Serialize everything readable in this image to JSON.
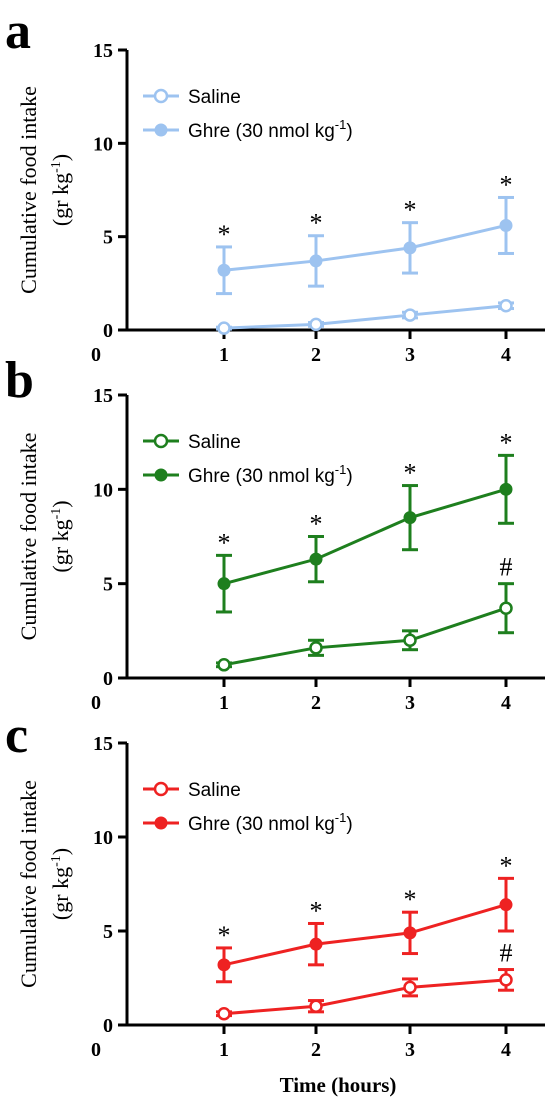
{
  "chart_data": [
    {
      "panel": "a",
      "type": "line",
      "color": "#9dc3f0",
      "x": [
        1,
        2,
        3,
        4
      ],
      "xlim": [
        0,
        4.4
      ],
      "ylim": [
        0,
        15
      ],
      "yticks": [
        0,
        5,
        10,
        15
      ],
      "xticks": [
        0,
        1,
        2,
        3,
        4
      ],
      "ylabel_line1": "Cumulative food intake",
      "ylabel_line2": "(gr kg",
      "ylabel_sup": "-1",
      "ylabel_close": ")",
      "xlabel": "",
      "legend": [
        {
          "name": "Saline",
          "marker": "open"
        },
        {
          "name": "Ghre (30 nmol kg",
          "sup": "-1",
          "close": ")",
          "marker": "filled"
        }
      ],
      "series": [
        {
          "name": "Saline",
          "marker": "open",
          "values": [
            0.1,
            0.3,
            0.8,
            1.3
          ],
          "errors": [
            0.05,
            0.1,
            0.15,
            0.15
          ],
          "annotations": [
            "",
            "",
            "",
            ""
          ]
        },
        {
          "name": "Ghre (30 nmol kg-1)",
          "marker": "filled",
          "values": [
            3.2,
            3.7,
            4.4,
            5.6
          ],
          "errors": [
            1.25,
            1.35,
            1.35,
            1.5
          ],
          "annotations": [
            "*",
            "*",
            "*",
            "*"
          ]
        }
      ]
    },
    {
      "panel": "b",
      "type": "line",
      "color": "#1e7f1e",
      "x": [
        1,
        2,
        3,
        4
      ],
      "xlim": [
        0,
        4.4
      ],
      "ylim": [
        0,
        15
      ],
      "yticks": [
        0,
        5,
        10,
        15
      ],
      "xticks": [
        0,
        1,
        2,
        3,
        4
      ],
      "ylabel_line1": "Cumulative food intake",
      "ylabel_line2": "(gr kg",
      "ylabel_sup": "-1",
      "ylabel_close": ")",
      "xlabel": "",
      "legend": [
        {
          "name": "Saline",
          "marker": "open"
        },
        {
          "name": "Ghre (30 nmol kg",
          "sup": "-1",
          "close": ")",
          "marker": "filled"
        }
      ],
      "series": [
        {
          "name": "Saline",
          "marker": "open",
          "values": [
            0.7,
            1.6,
            2.0,
            3.7
          ],
          "errors": [
            0.1,
            0.4,
            0.5,
            1.3
          ],
          "annotations": [
            "",
            "",
            "",
            "#"
          ]
        },
        {
          "name": "Ghre (30 nmol kg-1)",
          "marker": "filled",
          "values": [
            5.0,
            6.3,
            8.5,
            10.0
          ],
          "errors": [
            1.5,
            1.2,
            1.7,
            1.8
          ],
          "annotations": [
            "*",
            "*",
            "*",
            "*"
          ]
        }
      ]
    },
    {
      "panel": "c",
      "type": "line",
      "color": "#ee2222",
      "x": [
        1,
        2,
        3,
        4
      ],
      "xlim": [
        0,
        4.4
      ],
      "ylim": [
        0,
        15
      ],
      "yticks": [
        0,
        5,
        10,
        15
      ],
      "xticks": [
        0,
        1,
        2,
        3,
        4
      ],
      "ylabel_line1": "Cumulative food intake",
      "ylabel_line2": "(gr kg",
      "ylabel_sup": "-1",
      "ylabel_close": ")",
      "xlabel": "Time (hours)",
      "legend": [
        {
          "name": "Saline",
          "marker": "open"
        },
        {
          "name": "Ghre (30 nmol kg",
          "sup": "-1",
          "close": ")",
          "marker": "filled"
        }
      ],
      "series": [
        {
          "name": "Saline",
          "marker": "open",
          "values": [
            0.6,
            1.0,
            2.0,
            2.4
          ],
          "errors": [
            0.1,
            0.3,
            0.45,
            0.55
          ],
          "annotations": [
            "",
            "",
            "",
            "#"
          ]
        },
        {
          "name": "Ghre (30 nmol kg-1)",
          "marker": "filled",
          "values": [
            3.2,
            4.3,
            4.9,
            6.4
          ],
          "errors": [
            0.9,
            1.1,
            1.1,
            1.4
          ],
          "annotations": [
            "*",
            "*",
            "*",
            "*"
          ]
        }
      ]
    }
  ]
}
